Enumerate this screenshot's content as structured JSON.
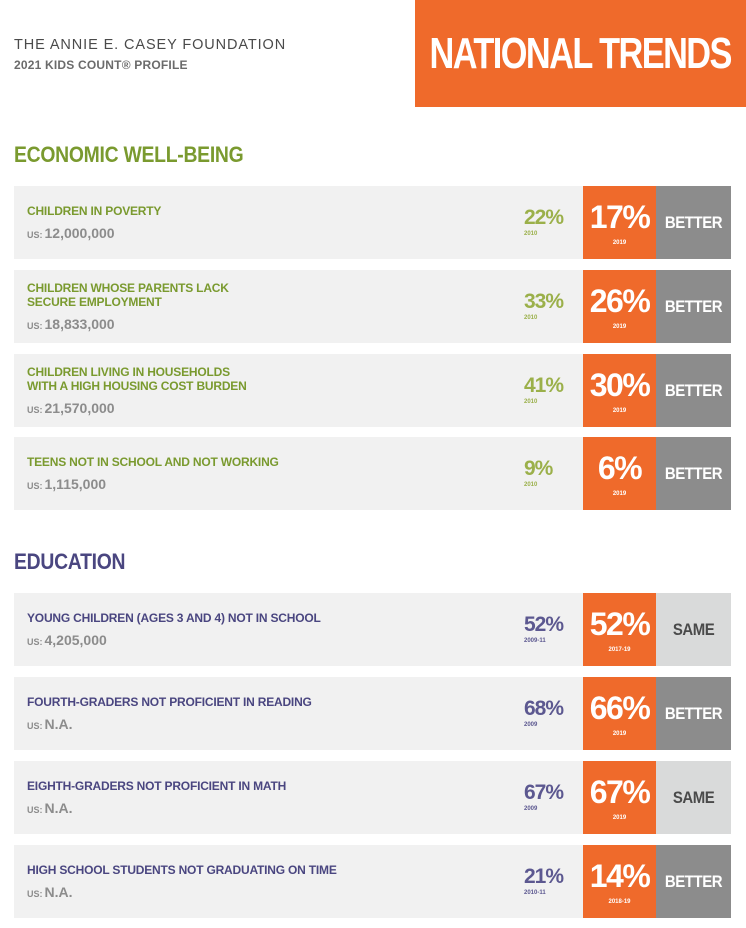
{
  "header": {
    "org": "THE ANNIE E. CASEY FOUNDATION",
    "profile": "2021 KIDS COUNT® PROFILE",
    "banner": "NATIONAL TRENDS"
  },
  "colors": {
    "orange": "#ef6a2b",
    "economic_green": "#7a9a2f",
    "education_purple": "#4a4680",
    "better_gray": "#8c8c8c",
    "same_gray": "#d9dada"
  },
  "sections": [
    {
      "title": "ECONOMIC WELL-BEING",
      "rows": [
        {
          "label_lines": [
            "CHILDREN IN POVERTY"
          ],
          "us_tag": "US:",
          "us_value": "12,000,000",
          "prev_value": "22%",
          "prev_year": "2010",
          "curr_value": "17%",
          "curr_year": "2019",
          "trend": "BETTER"
        },
        {
          "label_lines": [
            "CHILDREN WHOSE PARENTS LACK",
            "SECURE EMPLOYMENT"
          ],
          "us_tag": "US:",
          "us_value": "18,833,000",
          "prev_value": "33%",
          "prev_year": "2010",
          "curr_value": "26%",
          "curr_year": "2019",
          "trend": "BETTER"
        },
        {
          "label_lines": [
            "CHILDREN LIVING IN HOUSEHOLDS",
            "WITH A HIGH HOUSING COST BURDEN"
          ],
          "us_tag": "US:",
          "us_value": "21,570,000",
          "prev_value": "41%",
          "prev_year": "2010",
          "curr_value": "30%",
          "curr_year": "2019",
          "trend": "BETTER"
        },
        {
          "label_lines": [
            "TEENS NOT IN SCHOOL AND NOT WORKING"
          ],
          "us_tag": "US:",
          "us_value": "1,115,000",
          "prev_value": "9%",
          "prev_year": "2010",
          "curr_value": "6%",
          "curr_year": "2019",
          "trend": "BETTER"
        }
      ]
    },
    {
      "title": "EDUCATION",
      "rows": [
        {
          "label_lines": [
            "YOUNG CHILDREN (AGES 3 AND 4) NOT IN SCHOOL"
          ],
          "us_tag": "US:",
          "us_value": "4,205,000",
          "prev_value": "52%",
          "prev_year": "2009-11",
          "curr_value": "52%",
          "curr_year": "2017-19",
          "trend": "SAME"
        },
        {
          "label_lines": [
            "FOURTH-GRADERS NOT PROFICIENT IN READING"
          ],
          "us_tag": "US:",
          "us_value": "N.A.",
          "prev_value": "68%",
          "prev_year": "2009",
          "curr_value": "66%",
          "curr_year": "2019",
          "trend": "BETTER"
        },
        {
          "label_lines": [
            "EIGHTH-GRADERS NOT PROFICIENT IN MATH"
          ],
          "us_tag": "US:",
          "us_value": "N.A.",
          "prev_value": "67%",
          "prev_year": "2009",
          "curr_value": "67%",
          "curr_year": "2019",
          "trend": "SAME"
        },
        {
          "label_lines": [
            "HIGH SCHOOL STUDENTS NOT GRADUATING ON TIME"
          ],
          "us_tag": "US:",
          "us_value": "N.A.",
          "prev_value": "21%",
          "prev_year": "2010-11",
          "curr_value": "14%",
          "curr_year": "2018-19",
          "trend": "BETTER"
        }
      ]
    }
  ]
}
